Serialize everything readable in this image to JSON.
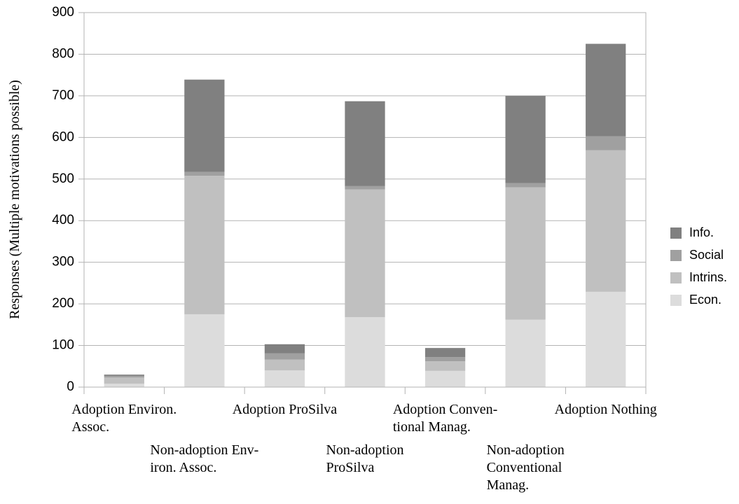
{
  "chart_data": {
    "type": "stacked_bar",
    "y_label": "Responses (Multiple motivations possible)",
    "categories": [
      "Adoption Environ.\nAssoc.",
      "Non-adoption Env-\niron. Assoc.",
      "Adoption ProSilva",
      "Non-adoption\nProSilva",
      "Adoption Conven-\ntional Manag.",
      "Non-adoption\nConventional\nManag.",
      "Adoption Nothing"
    ],
    "series": [
      {
        "name": "Econ.",
        "color": "#dcdcdc",
        "values": [
          8,
          175,
          40,
          168,
          39,
          162,
          229
        ]
      },
      {
        "name": "Intrins.",
        "color": "#c0c0c0",
        "values": [
          15,
          333,
          26,
          307,
          23,
          318,
          340
        ]
      },
      {
        "name": "Social",
        "color": "#a0a0a0",
        "values": [
          4,
          9,
          15,
          8,
          10,
          10,
          34
        ]
      },
      {
        "name": "Info.",
        "color": "#808080",
        "values": [
          3,
          222,
          22,
          204,
          22,
          210,
          222
        ]
      }
    ],
    "ylim": [
      0,
      900
    ],
    "yticks": [
      0,
      100,
      200,
      300,
      400,
      500,
      600,
      700,
      800,
      900
    ],
    "grid": true,
    "legend_position": "right"
  }
}
